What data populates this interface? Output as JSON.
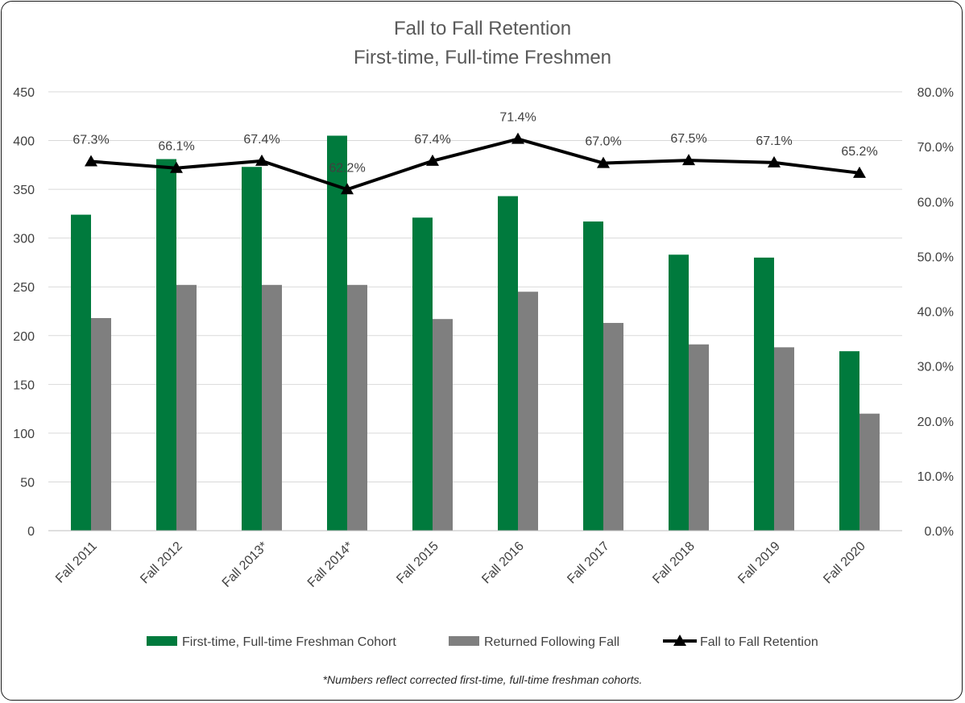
{
  "chart_data": {
    "type": "bar",
    "title": "Fall to Fall Retention",
    "subtitle": "First-time, Full-time Freshmen",
    "categories": [
      "Fall 2011",
      "Fall 2012",
      "Fall 2013*",
      "Fall 2014*",
      "Fall 2015",
      "Fall 2016",
      "Fall 2017",
      "Fall 2018",
      "Fall 2019",
      "Fall 2020"
    ],
    "series": [
      {
        "name": "First-time, Full-time Freshman Cohort",
        "type": "bar",
        "axis": "left",
        "color": "#007A3D",
        "values": [
          324,
          381,
          373,
          405,
          321,
          343,
          317,
          283,
          280,
          184
        ]
      },
      {
        "name": "Returned Following Fall",
        "type": "bar",
        "axis": "left",
        "color": "#7F7F7F",
        "values": [
          218,
          252,
          252,
          252,
          217,
          245,
          213,
          191,
          188,
          120
        ]
      },
      {
        "name": "Fall to Fall Retention",
        "type": "line",
        "axis": "right",
        "color": "#000000",
        "marker": "triangle",
        "values": [
          67.3,
          66.1,
          67.4,
          62.2,
          67.4,
          71.4,
          67.0,
          67.5,
          67.1,
          65.2
        ],
        "labels": [
          "67.3%",
          "66.1%",
          "67.4%",
          "62.2%",
          "67.4%",
          "71.4%",
          "67.0%",
          "67.5%",
          "67.1%",
          "65.2%"
        ]
      }
    ],
    "y_left": {
      "min": 0,
      "max": 450,
      "ticks": [
        "0",
        "50",
        "100",
        "150",
        "200",
        "250",
        "300",
        "350",
        "400",
        "450"
      ]
    },
    "y_right": {
      "min": 0,
      "max": 80,
      "ticks": [
        "0.0%",
        "10.0%",
        "20.0%",
        "30.0%",
        "40.0%",
        "50.0%",
        "60.0%",
        "70.0%",
        "80.0%"
      ]
    },
    "grid": true,
    "legend_position": "bottom",
    "footnote": "*Numbers reflect corrected first-time, full-time freshman cohorts."
  }
}
